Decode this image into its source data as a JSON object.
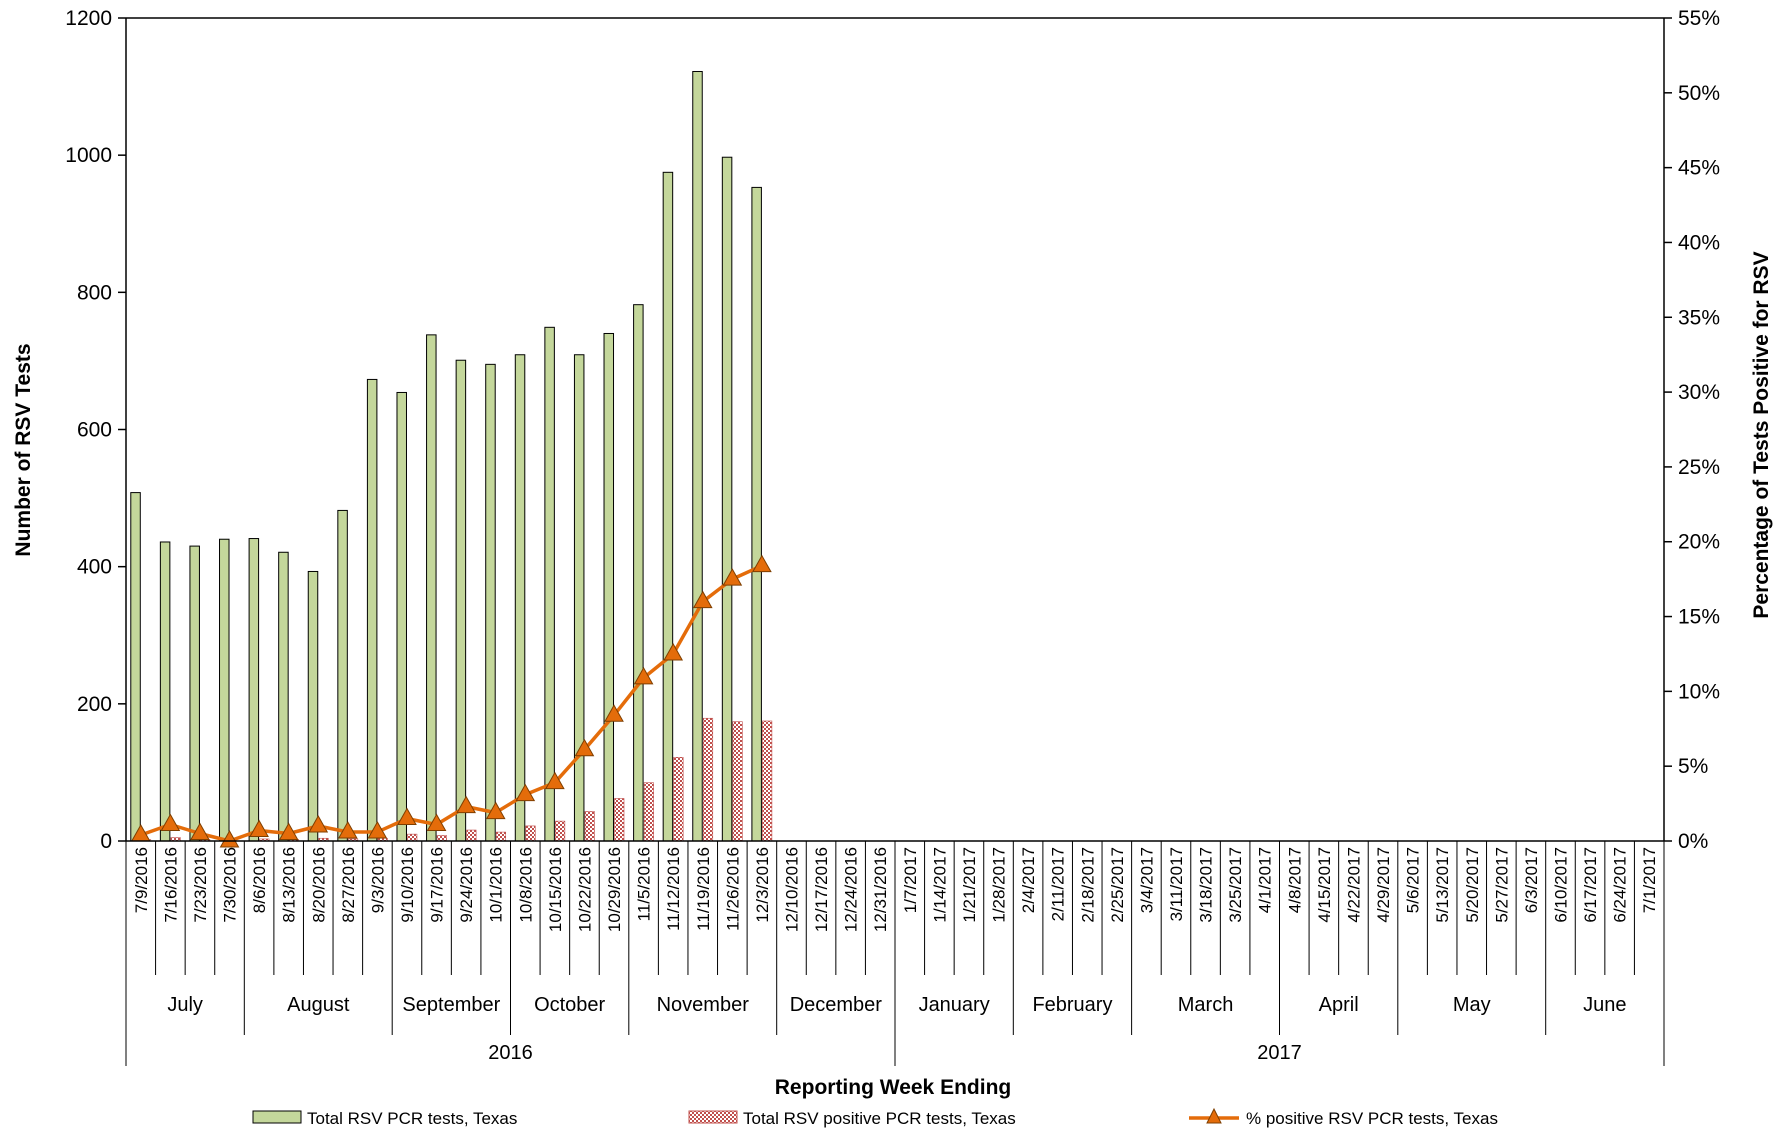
{
  "chart_data": {
    "type": "bar",
    "xlabel": "Reporting Week Ending",
    "ylabel": "Number of RSV Tests",
    "y2label": "Percentage of Tests Positive for RSV",
    "ylim": [
      0,
      1200
    ],
    "yticks": [
      "0",
      "200",
      "400",
      "600",
      "800",
      "1000",
      "1200"
    ],
    "y2lim": [
      0,
      55
    ],
    "y2ticks": [
      "0%",
      "5%",
      "10%",
      "15%",
      "20%",
      "25%",
      "30%",
      "35%",
      "40%",
      "45%",
      "50%",
      "55%"
    ],
    "categories": [
      "7/9/2016",
      "7/16/2016",
      "7/23/2016",
      "7/30/2016",
      "8/6/2016",
      "8/13/2016",
      "8/20/2016",
      "8/27/2016",
      "9/3/2016",
      "9/10/2016",
      "9/17/2016",
      "9/24/2016",
      "10/1/2016",
      "10/8/2016",
      "10/15/2016",
      "10/22/2016",
      "10/29/2016",
      "11/5/2016",
      "11/12/2016",
      "11/19/2016",
      "11/26/2016",
      "12/3/2016",
      "12/10/2016",
      "12/17/2016",
      "12/24/2016",
      "12/31/2016",
      "1/7/2017",
      "1/14/2017",
      "1/21/2017",
      "1/28/2017",
      "2/4/2017",
      "2/11/2017",
      "2/18/2017",
      "2/25/2017",
      "3/4/2017",
      "3/11/2017",
      "3/18/2017",
      "3/25/2017",
      "4/1/2017",
      "4/8/2017",
      "4/15/2017",
      "4/22/2017",
      "4/29/2017",
      "5/6/2017",
      "5/13/2017",
      "5/20/2017",
      "5/27/2017",
      "6/3/2017",
      "6/10/2017",
      "6/17/2017",
      "6/24/2017",
      "7/1/2017"
    ],
    "months": [
      {
        "label": "July",
        "start": 0,
        "end": 4
      },
      {
        "label": "August",
        "start": 4,
        "end": 9
      },
      {
        "label": "September",
        "start": 9,
        "end": 13
      },
      {
        "label": "October",
        "start": 13,
        "end": 17
      },
      {
        "label": "November",
        "start": 17,
        "end": 22
      },
      {
        "label": "December",
        "start": 22,
        "end": 26
      },
      {
        "label": "January",
        "start": 26,
        "end": 30
      },
      {
        "label": "February",
        "start": 30,
        "end": 34
      },
      {
        "label": "March",
        "start": 34,
        "end": 39
      },
      {
        "label": "April",
        "start": 39,
        "end": 43
      },
      {
        "label": "May",
        "start": 43,
        "end": 48
      },
      {
        "label": "June",
        "start": 48,
        "end": 52
      }
    ],
    "years": [
      {
        "label": "2016",
        "start": 0,
        "end": 26
      },
      {
        "label": "2017",
        "start": 26,
        "end": 52
      }
    ],
    "series": [
      {
        "name": "Total RSV PCR tests, Texas",
        "kind": "bar",
        "color": "#c4d79b",
        "stroke": "#000000",
        "values": [
          508,
          436,
          430,
          440,
          441,
          421,
          393,
          482,
          673,
          654,
          738,
          701,
          695,
          709,
          749,
          709,
          740,
          782,
          975,
          1122,
          997,
          953,
          null,
          null,
          null,
          null,
          null,
          null,
          null,
          null,
          null,
          null,
          null,
          null,
          null,
          null,
          null,
          null,
          null,
          null,
          null,
          null,
          null,
          null,
          null,
          null,
          null,
          null,
          null,
          null,
          null,
          null
        ]
      },
      {
        "name": "Total RSV positive PCR tests, Texas",
        "kind": "bar",
        "pattern": "checker",
        "color": "#c0504d",
        "values": [
          2,
          5,
          2,
          0,
          3,
          2,
          4,
          3,
          4,
          10,
          8,
          16,
          13,
          22,
          29,
          43,
          62,
          85,
          122,
          179,
          174,
          175,
          null,
          null,
          null,
          null,
          null,
          null,
          null,
          null,
          null,
          null,
          null,
          null,
          null,
          null,
          null,
          null,
          null,
          null,
          null,
          null,
          null,
          null,
          null,
          null,
          null,
          null,
          null,
          null,
          null,
          null
        ]
      },
      {
        "name": "% positive RSV PCR tests, Texas",
        "kind": "line",
        "axis": "right",
        "color": "#e46c0a",
        "marker": "triangle",
        "values": [
          0.4,
          1.1,
          0.5,
          0.0,
          0.7,
          0.5,
          1.0,
          0.6,
          0.6,
          1.5,
          1.1,
          2.3,
          1.9,
          3.1,
          3.9,
          6.1,
          8.4,
          10.9,
          12.5,
          16.0,
          17.5,
          18.4,
          null,
          null,
          null,
          null,
          null,
          null,
          null,
          null,
          null,
          null,
          null,
          null,
          null,
          null,
          null,
          null,
          null,
          null,
          null,
          null,
          null,
          null,
          null,
          null,
          null,
          null,
          null,
          null,
          null,
          null
        ]
      }
    ],
    "legend": "bottom"
  }
}
